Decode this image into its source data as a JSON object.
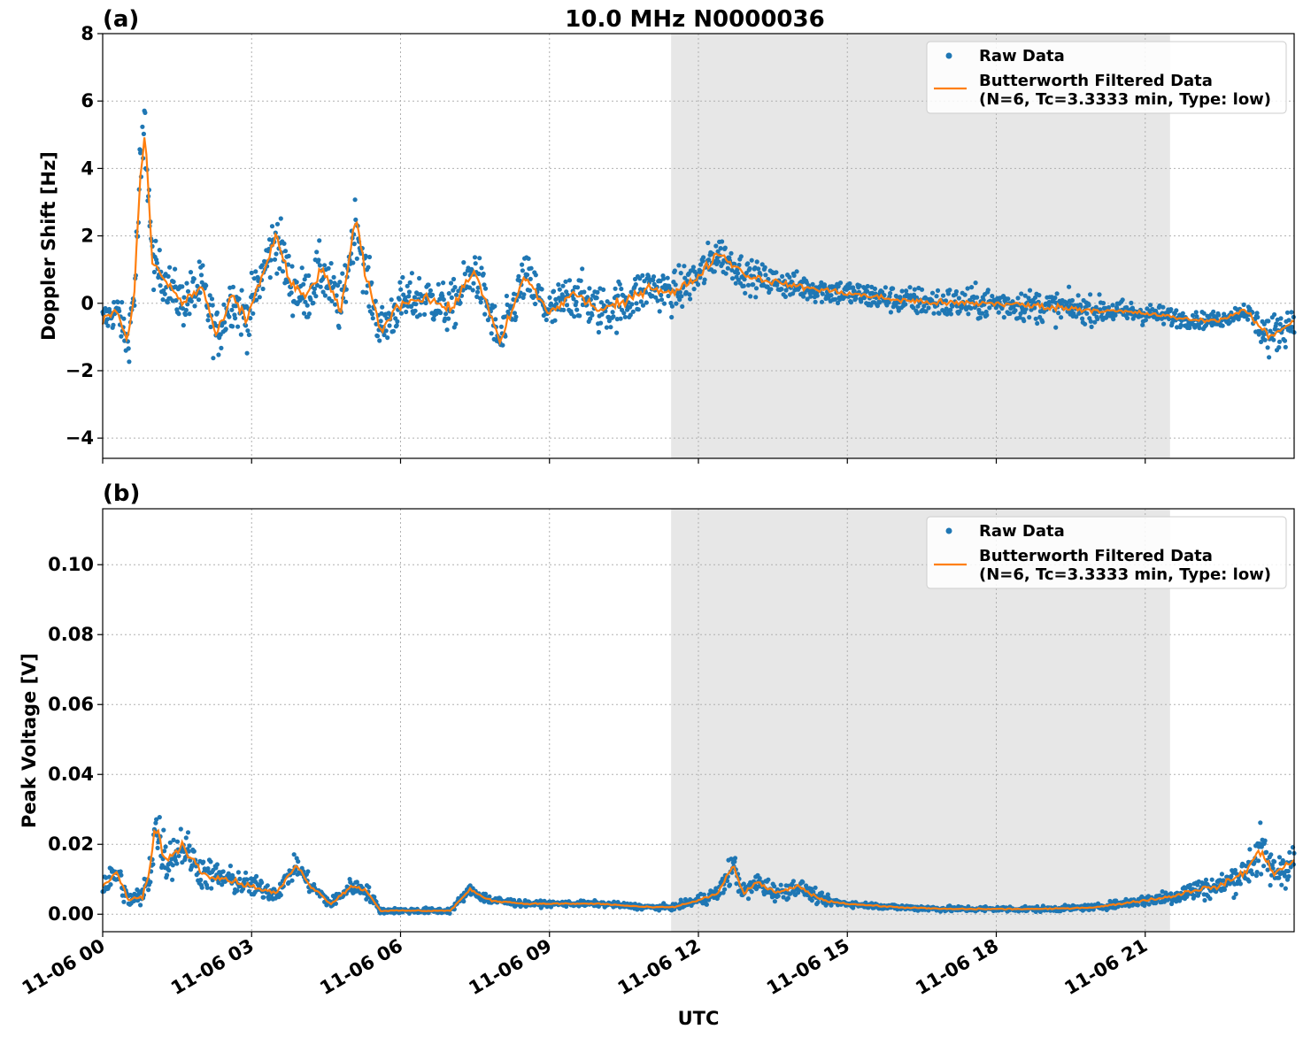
{
  "figure": {
    "title": "10.0 MHz N0000036",
    "xlabel": "UTC"
  },
  "chart_data": [
    {
      "type": "scatter",
      "panel_label": "(a)",
      "title": "10.0 MHz N0000036",
      "xlabel": "UTC",
      "ylabel": "Doppler Shift [Hz]",
      "xlim_hours": [
        0,
        24
      ],
      "ylim": [
        -4.6,
        8
      ],
      "yticks": [
        "8",
        "6",
        "4",
        "2",
        "0",
        "−2",
        "−4"
      ],
      "ytick_values": [
        8,
        6,
        4,
        2,
        0,
        -2,
        -4
      ],
      "xticks": [
        "11-06 00",
        "11-06 03",
        "11-06 06",
        "11-06 09",
        "11-06 12",
        "11-06 15",
        "11-06 18",
        "11-06 21"
      ],
      "xtick_hours": [
        0,
        3,
        6,
        9,
        12,
        15,
        18,
        21
      ],
      "grid": true,
      "legend_placement": "top-right",
      "shaded_interval_hours": [
        11.45,
        21.5
      ],
      "series": [
        {
          "name": "Raw Data",
          "kind": "scatter",
          "color": "#1f77b4",
          "x_hours": [
            0,
            0.3,
            0.5,
            0.65,
            0.75,
            0.85,
            1.0,
            1.3,
            1.6,
            2.0,
            2.3,
            2.6,
            2.9,
            3.2,
            3.5,
            3.8,
            4.1,
            4.4,
            4.8,
            5.1,
            5.3,
            5.6,
            6.0,
            6.5,
            7.0,
            7.5,
            8.0,
            8.5,
            9.0,
            9.5,
            10.0,
            10.5,
            11.0,
            11.5,
            12.0,
            12.4,
            13.0,
            14.0,
            15.0,
            16.0,
            17.0,
            18.0,
            19.0,
            20.0,
            21.0,
            22.0,
            22.5,
            23.0,
            23.5,
            24.0
          ],
          "y": [
            -0.5,
            -0.2,
            -1.2,
            0.5,
            3.5,
            5.2,
            1.2,
            0.6,
            0.0,
            0.5,
            -1.0,
            0.2,
            -0.5,
            0.8,
            2.0,
            0.5,
            0.2,
            1.0,
            -0.2,
            2.5,
            0.8,
            -0.8,
            0.0,
            0.2,
            -0.2,
            1.0,
            -1.2,
            0.8,
            -0.3,
            0.3,
            -0.2,
            0.0,
            0.5,
            0.3,
            0.8,
            1.5,
            0.8,
            0.5,
            0.3,
            0.1,
            0.0,
            0.0,
            -0.1,
            -0.2,
            -0.3,
            -0.5,
            -0.5,
            -0.2,
            -1.0,
            -0.5
          ],
          "spread": [
            0.6,
            0.7,
            0.8,
            1.2,
            1.8,
            1.5,
            0.9,
            0.8,
            0.9,
            1.0,
            1.0,
            1.0,
            1.0,
            1.0,
            1.2,
            1.0,
            1.0,
            1.0,
            1.0,
            1.0,
            1.0,
            0.9,
            0.9,
            0.9,
            0.9,
            0.9,
            0.9,
            0.9,
            0.9,
            0.9,
            0.9,
            0.9,
            0.8,
            0.8,
            0.8,
            0.7,
            0.6,
            0.5,
            0.5,
            0.5,
            0.6,
            0.6,
            0.6,
            0.5,
            0.4,
            0.3,
            0.3,
            0.3,
            0.8,
            0.6
          ]
        },
        {
          "name": "Butterworth Filtered Data\n(N=6, Tc=3.3333 min, Type: low)",
          "kind": "line",
          "color": "#ff7f0e",
          "x_hours": [
            0,
            0.3,
            0.5,
            0.65,
            0.75,
            0.85,
            1.0,
            1.3,
            1.6,
            2.0,
            2.3,
            2.6,
            2.9,
            3.2,
            3.5,
            3.8,
            4.1,
            4.4,
            4.8,
            5.1,
            5.3,
            5.6,
            6.0,
            6.5,
            7.0,
            7.5,
            8.0,
            8.5,
            9.0,
            9.5,
            10.0,
            10.5,
            11.0,
            11.5,
            12.0,
            12.4,
            13.0,
            14.0,
            15.0,
            16.0,
            17.0,
            18.0,
            19.0,
            20.0,
            21.0,
            22.0,
            22.5,
            23.0,
            23.5,
            24.0
          ],
          "y": [
            -0.5,
            -0.2,
            -1.2,
            0.5,
            3.5,
            5.2,
            1.2,
            0.6,
            0.0,
            0.5,
            -1.0,
            0.2,
            -0.5,
            0.8,
            2.0,
            0.5,
            0.2,
            1.0,
            -0.2,
            2.5,
            0.8,
            -0.8,
            0.0,
            0.2,
            -0.2,
            1.0,
            -1.2,
            0.8,
            -0.3,
            0.3,
            -0.2,
            0.0,
            0.5,
            0.3,
            0.8,
            1.5,
            0.8,
            0.5,
            0.3,
            0.1,
            0.0,
            0.0,
            -0.1,
            -0.2,
            -0.3,
            -0.5,
            -0.5,
            -0.2,
            -1.0,
            -0.5
          ]
        }
      ],
      "legend": {
        "raw": "Raw Data",
        "filtered_line1": "Butterworth Filtered Data",
        "filtered_line2": "(N=6, Tc=3.3333 min, Type: low)"
      }
    },
    {
      "type": "scatter",
      "panel_label": "(b)",
      "xlabel": "UTC",
      "ylabel": "Peak Voltage [V]",
      "xlim_hours": [
        0,
        24
      ],
      "ylim": [
        -0.005,
        0.116
      ],
      "yticks": [
        "0.10",
        "0.08",
        "0.06",
        "0.04",
        "0.02",
        "0.00"
      ],
      "ytick_values": [
        0.1,
        0.08,
        0.06,
        0.04,
        0.02,
        0.0
      ],
      "xticks": [
        "11-06 00",
        "11-06 03",
        "11-06 06",
        "11-06 09",
        "11-06 12",
        "11-06 15",
        "11-06 18",
        "11-06 21"
      ],
      "xtick_hours": [
        0,
        3,
        6,
        9,
        12,
        15,
        18,
        21
      ],
      "grid": true,
      "legend_placement": "top-right",
      "shaded_interval_hours": [
        11.45,
        21.5
      ],
      "series": [
        {
          "name": "Raw Data",
          "kind": "scatter",
          "color": "#1f77b4",
          "x_hours": [
            0,
            0.3,
            0.5,
            0.8,
            0.95,
            1.05,
            1.3,
            1.6,
            2.0,
            2.5,
            3.0,
            3.5,
            3.9,
            4.2,
            4.6,
            5.0,
            5.3,
            5.6,
            6.0,
            7.0,
            7.4,
            7.8,
            8.5,
            9.0,
            10.0,
            11.0,
            11.5,
            12.0,
            12.4,
            12.7,
            12.9,
            13.2,
            13.6,
            14.0,
            14.5,
            15.0,
            16.0,
            17.0,
            18.0,
            19.0,
            20.0,
            21.0,
            21.5,
            22.0,
            22.5,
            23.0,
            23.3,
            23.6,
            24.0
          ],
          "y": [
            0.008,
            0.012,
            0.004,
            0.005,
            0.012,
            0.025,
            0.015,
            0.02,
            0.012,
            0.01,
            0.008,
            0.006,
            0.014,
            0.008,
            0.003,
            0.008,
            0.007,
            0.001,
            0.001,
            0.001,
            0.007,
            0.004,
            0.003,
            0.003,
            0.003,
            0.002,
            0.002,
            0.004,
            0.006,
            0.014,
            0.006,
            0.009,
            0.006,
            0.008,
            0.004,
            0.003,
            0.002,
            0.0015,
            0.0015,
            0.0015,
            0.002,
            0.004,
            0.005,
            0.007,
            0.008,
            0.012,
            0.018,
            0.012,
            0.015
          ],
          "spread": [
            0.005,
            0.006,
            0.003,
            0.004,
            0.008,
            0.012,
            0.008,
            0.008,
            0.006,
            0.005,
            0.004,
            0.003,
            0.004,
            0.003,
            0.002,
            0.003,
            0.003,
            0.001,
            0.001,
            0.001,
            0.002,
            0.002,
            0.001,
            0.001,
            0.001,
            0.001,
            0.001,
            0.002,
            0.003,
            0.006,
            0.003,
            0.004,
            0.003,
            0.003,
            0.002,
            0.001,
            0.001,
            0.001,
            0.001,
            0.001,
            0.001,
            0.002,
            0.003,
            0.004,
            0.004,
            0.006,
            0.01,
            0.006,
            0.008
          ]
        },
        {
          "name": "Butterworth Filtered Data\n(N=6, Tc=3.3333 min, Type: low)",
          "kind": "line",
          "color": "#ff7f0e",
          "x_hours": [
            0,
            0.3,
            0.5,
            0.8,
            0.95,
            1.05,
            1.3,
            1.6,
            2.0,
            2.5,
            3.0,
            3.5,
            3.9,
            4.2,
            4.6,
            5.0,
            5.3,
            5.6,
            6.0,
            7.0,
            7.4,
            7.8,
            8.5,
            9.0,
            10.0,
            11.0,
            11.5,
            12.0,
            12.4,
            12.7,
            12.9,
            13.2,
            13.6,
            14.0,
            14.5,
            15.0,
            16.0,
            17.0,
            18.0,
            19.0,
            20.0,
            21.0,
            21.5,
            22.0,
            22.5,
            23.0,
            23.3,
            23.6,
            24.0
          ],
          "y": [
            0.008,
            0.012,
            0.004,
            0.005,
            0.012,
            0.025,
            0.015,
            0.02,
            0.012,
            0.01,
            0.008,
            0.006,
            0.014,
            0.008,
            0.003,
            0.008,
            0.007,
            0.001,
            0.001,
            0.001,
            0.007,
            0.004,
            0.003,
            0.003,
            0.003,
            0.002,
            0.002,
            0.004,
            0.006,
            0.014,
            0.006,
            0.009,
            0.006,
            0.008,
            0.004,
            0.003,
            0.002,
            0.0015,
            0.0015,
            0.0015,
            0.002,
            0.004,
            0.005,
            0.007,
            0.008,
            0.012,
            0.018,
            0.012,
            0.015
          ]
        }
      ],
      "legend": {
        "raw": "Raw Data",
        "filtered_line1": "Butterworth Filtered Data",
        "filtered_line2": "(N=6, Tc=3.3333 min, Type: low)"
      }
    }
  ]
}
